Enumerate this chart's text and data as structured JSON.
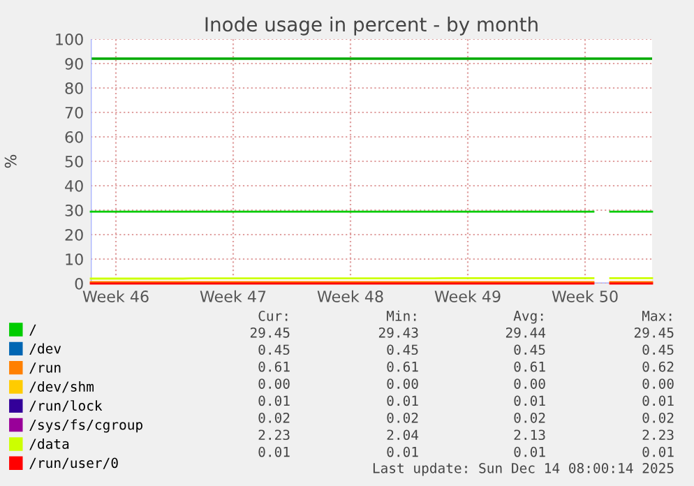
{
  "chart_data": {
    "type": "line",
    "title": "Inode usage in percent - by month",
    "ylabel": "%",
    "categories": [
      null,
      null,
      null,
      "Week 46",
      null,
      null,
      null,
      null,
      null,
      null,
      null,
      null,
      null,
      null,
      null,
      null,
      null,
      "Week 47",
      null,
      null,
      null,
      null,
      null,
      null,
      null,
      null,
      null,
      null,
      null,
      null,
      null,
      "Week 48",
      null,
      null,
      null,
      null,
      null,
      null,
      null,
      null,
      null,
      null,
      null,
      null,
      null,
      "Week 49",
      null,
      null,
      null,
      null,
      null,
      null,
      null,
      null,
      null,
      null,
      null,
      null,
      null,
      "Week 50",
      null,
      null,
      null,
      null,
      null,
      null,
      null,
      null
    ],
    "series": [
      {
        "name": "/",
        "color": "#00cc00",
        "values": [
          29.4,
          29.4,
          29.4,
          29.4,
          29.4,
          29.4,
          29.4,
          29.4,
          29.4,
          29.4,
          29.4,
          29.4,
          29.4,
          29.4,
          29.4,
          29.4,
          29.4,
          29.4,
          29.4,
          29.4,
          29.4,
          29.4,
          29.4,
          29.4,
          29.4,
          29.4,
          29.4,
          29.4,
          29.4,
          29.4,
          29.4,
          29.4,
          29.4,
          29.4,
          29.4,
          29.4,
          29.4,
          29.4,
          29.4,
          29.4,
          29.4,
          29.4,
          29.4,
          29.4,
          29.4,
          29.4,
          29.4,
          29.4,
          29.4,
          29.4,
          29.4,
          29.4,
          29.4,
          29.4,
          29.4,
          29.4,
          29.4,
          29.4,
          29.4,
          29.4,
          29.4,
          null,
          29.4,
          29.4,
          29.4,
          29.4,
          29.4,
          29.4
        ]
      },
      {
        "name": "/dev",
        "color": "#0066b3",
        "values": [
          null,
          null,
          null,
          null,
          null,
          null,
          null,
          null,
          null,
          null,
          null,
          null,
          null,
          null,
          null,
          null,
          null,
          null,
          null,
          null,
          null,
          null,
          null,
          null,
          null,
          null,
          null,
          null,
          null,
          null,
          null,
          null,
          null,
          null,
          null,
          null,
          null,
          null,
          null,
          null,
          null,
          null,
          null,
          null,
          null,
          null,
          null,
          null,
          null,
          null,
          null,
          null,
          null,
          null,
          null,
          null,
          null,
          null,
          null,
          null,
          null,
          null,
          null,
          null,
          null,
          null,
          null,
          null
        ]
      },
      {
        "name": "/run",
        "color": "#ff8000",
        "values": [
          0.6,
          0.6,
          0.6,
          0.6,
          0.6,
          0.6,
          0.6,
          0.6,
          0.6,
          0.6,
          0.6,
          0.6,
          0.6,
          0.6,
          0.6,
          0.6,
          0.6,
          0.6,
          0.6,
          0.6,
          0.6,
          0.6,
          0.6,
          0.6,
          0.6,
          0.6,
          0.6,
          0.6,
          0.6,
          0.6,
          0.6,
          0.6,
          0.6,
          0.6,
          0.6,
          0.6,
          0.6,
          0.6,
          0.6,
          0.6,
          0.6,
          0.6,
          0.6,
          0.6,
          0.6,
          0.6,
          0.6,
          0.6,
          0.6,
          0.6,
          0.6,
          0.6,
          0.6,
          0.6,
          0.6,
          0.6,
          0.6,
          0.6,
          0.6,
          0.6,
          0.6,
          null,
          0.6,
          0.6,
          0.6,
          0.6,
          0.6,
          0.6
        ]
      },
      {
        "name": "/dev/shm",
        "color": "#ffcc00",
        "values": [
          null,
          null,
          null,
          null,
          null,
          null,
          null,
          null,
          null,
          null,
          null,
          null,
          null,
          null,
          null,
          null,
          null,
          null,
          null,
          null,
          null,
          null,
          null,
          null,
          null,
          null,
          null,
          null,
          null,
          null,
          null,
          null,
          null,
          null,
          null,
          null,
          null,
          null,
          null,
          null,
          null,
          null,
          null,
          null,
          null,
          null,
          null,
          null,
          null,
          null,
          null,
          null,
          null,
          null,
          null,
          null,
          null,
          null,
          null,
          null,
          null,
          null,
          null,
          null,
          null,
          null,
          null,
          null
        ]
      },
      {
        "name": "/run/lock",
        "color": "#330099",
        "values": [
          null,
          null,
          null,
          null,
          null,
          null,
          null,
          null,
          null,
          null,
          null,
          null,
          null,
          null,
          null,
          null,
          null,
          null,
          null,
          null,
          null,
          null,
          null,
          null,
          null,
          null,
          null,
          null,
          null,
          null,
          null,
          null,
          null,
          null,
          null,
          null,
          null,
          null,
          null,
          null,
          null,
          null,
          null,
          null,
          null,
          null,
          null,
          null,
          null,
          null,
          null,
          null,
          null,
          null,
          null,
          null,
          null,
          null,
          null,
          null,
          null,
          null,
          null,
          null,
          null,
          null,
          null,
          null
        ]
      },
      {
        "name": "/sys/fs/cgroup",
        "color": "#990099",
        "values": [
          null,
          null,
          null,
          null,
          null,
          null,
          null,
          null,
          null,
          null,
          null,
          null,
          null,
          null,
          null,
          null,
          null,
          null,
          null,
          null,
          null,
          null,
          null,
          null,
          null,
          null,
          null,
          null,
          null,
          null,
          null,
          null,
          null,
          null,
          null,
          null,
          null,
          null,
          null,
          null,
          null,
          null,
          null,
          null,
          null,
          null,
          null,
          null,
          null,
          null,
          null,
          null,
          null,
          null,
          null,
          null,
          null,
          null,
          null,
          null,
          null,
          null,
          null,
          null,
          null,
          null,
          null,
          null
        ]
      },
      {
        "name": "/data",
        "color": "#ccff00",
        "values": [
          2.0,
          2.0,
          2.0,
          2.0,
          2.0,
          2.0,
          2.0,
          2.0,
          2.0,
          2.0,
          2.0,
          2.0,
          2.1,
          2.1,
          2.1,
          2.1,
          2.1,
          2.1,
          2.1,
          2.1,
          2.1,
          2.1,
          2.1,
          2.1,
          2.1,
          2.1,
          2.1,
          2.1,
          2.1,
          2.1,
          2.1,
          2.1,
          2.1,
          2.1,
          2.1,
          2.1,
          2.1,
          2.1,
          2.1,
          2.1,
          2.1,
          2.1,
          2.2,
          2.2,
          2.2,
          2.2,
          2.2,
          2.2,
          2.2,
          2.2,
          2.2,
          2.2,
          2.2,
          2.2,
          2.2,
          2.2,
          2.2,
          2.2,
          2.2,
          2.2,
          2.2,
          null,
          2.2,
          2.2,
          2.2,
          2.2,
          2.2,
          2.2
        ]
      },
      {
        "name": "/run/user/0",
        "color": "#ff0000",
        "values": [
          0,
          0,
          0,
          0,
          0,
          0,
          0,
          0,
          0,
          0,
          0,
          0,
          0,
          0,
          0,
          0,
          0,
          0,
          0,
          0,
          0,
          0,
          0,
          0,
          0,
          0,
          0,
          0,
          0,
          0,
          0,
          0,
          0,
          0,
          0,
          0,
          0,
          0,
          0,
          0,
          0,
          0,
          0,
          0,
          0,
          0,
          0,
          0,
          0,
          0,
          0,
          0,
          0,
          0,
          0,
          0,
          0,
          0,
          0,
          0,
          0,
          null,
          0,
          0,
          0,
          0,
          0,
          0
        ]
      }
    ],
    "ylim": [
      0,
      100
    ],
    "yticks": [
      0,
      10,
      20,
      30,
      40,
      50,
      60,
      70,
      80,
      90,
      100
    ],
    "ref_lines": [
      {
        "axis": "y",
        "value": 92,
        "color": "#00aa00"
      }
    ],
    "grid": true,
    "legend": "bottom",
    "line_style": "solid",
    "marker": "none",
    "annotations": [
      "Cur:",
      "Min:",
      "Avg:",
      "Max:",
      "29.45",
      "29.43",
      "29.44",
      "29.45",
      "0.45",
      "0.45",
      "0.45",
      "0.45",
      "0.61",
      "0.61",
      "0.61",
      "0.62",
      "0.00",
      "0.00",
      "0.00",
      "0.00",
      "0.01",
      "0.01",
      "0.01",
      "0.01",
      "0.02",
      "0.02",
      "0.02",
      "0.02",
      "2.23",
      "2.04",
      "2.13",
      "2.23",
      "0.01",
      "0.01",
      "0.01",
      "0.01",
      "Last update: Sun Dec 14 08:00:14 2025"
    ]
  }
}
